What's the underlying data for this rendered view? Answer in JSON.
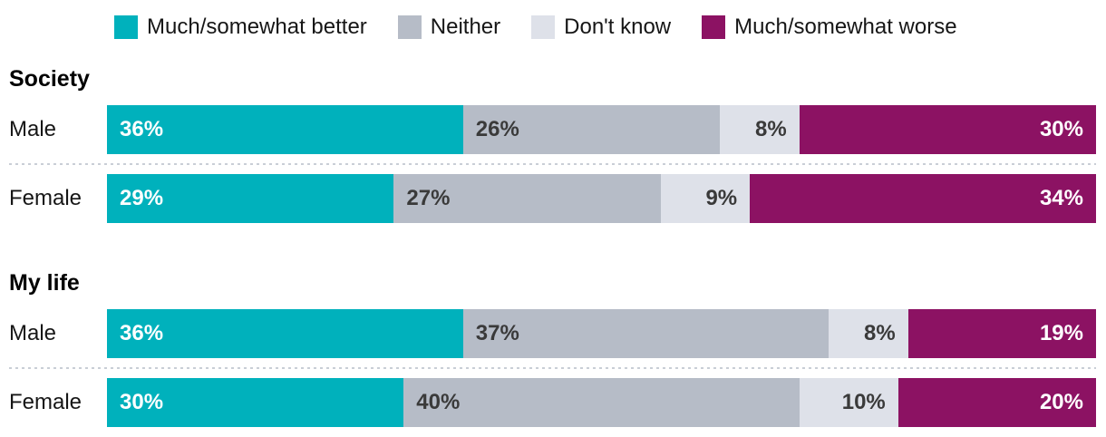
{
  "chart_data": {
    "type": "bar",
    "subtype": "stacked-horizontal-percent",
    "title": "",
    "legend_position": "top",
    "value_suffix": "%",
    "xlim": [
      0,
      100
    ],
    "grid": false,
    "series": [
      {
        "name": "Much/somewhat better",
        "color": "#00b1bc",
        "label_color": "#ffffff",
        "label_align": "left"
      },
      {
        "name": "Neither",
        "color": "#b6bcc7",
        "label_color": "#3a3a3a",
        "label_align": "left"
      },
      {
        "name": "Don't know",
        "color": "#dee1e9",
        "label_color": "#3a3a3a",
        "label_align": "right"
      },
      {
        "name": "Much/somewhat worse",
        "color": "#8c1263",
        "label_color": "#ffffff",
        "label_align": "right"
      }
    ],
    "groups": [
      {
        "label": "Society",
        "rows": [
          {
            "category": "Male",
            "values": [
              36,
              26,
              8,
              30
            ]
          },
          {
            "category": "Female",
            "values": [
              29,
              27,
              9,
              34
            ]
          }
        ]
      },
      {
        "label": "My life",
        "rows": [
          {
            "category": "Male",
            "values": [
              36,
              37,
              8,
              19
            ]
          },
          {
            "category": "Female",
            "values": [
              30,
              40,
              10,
              20
            ]
          }
        ]
      }
    ]
  }
}
